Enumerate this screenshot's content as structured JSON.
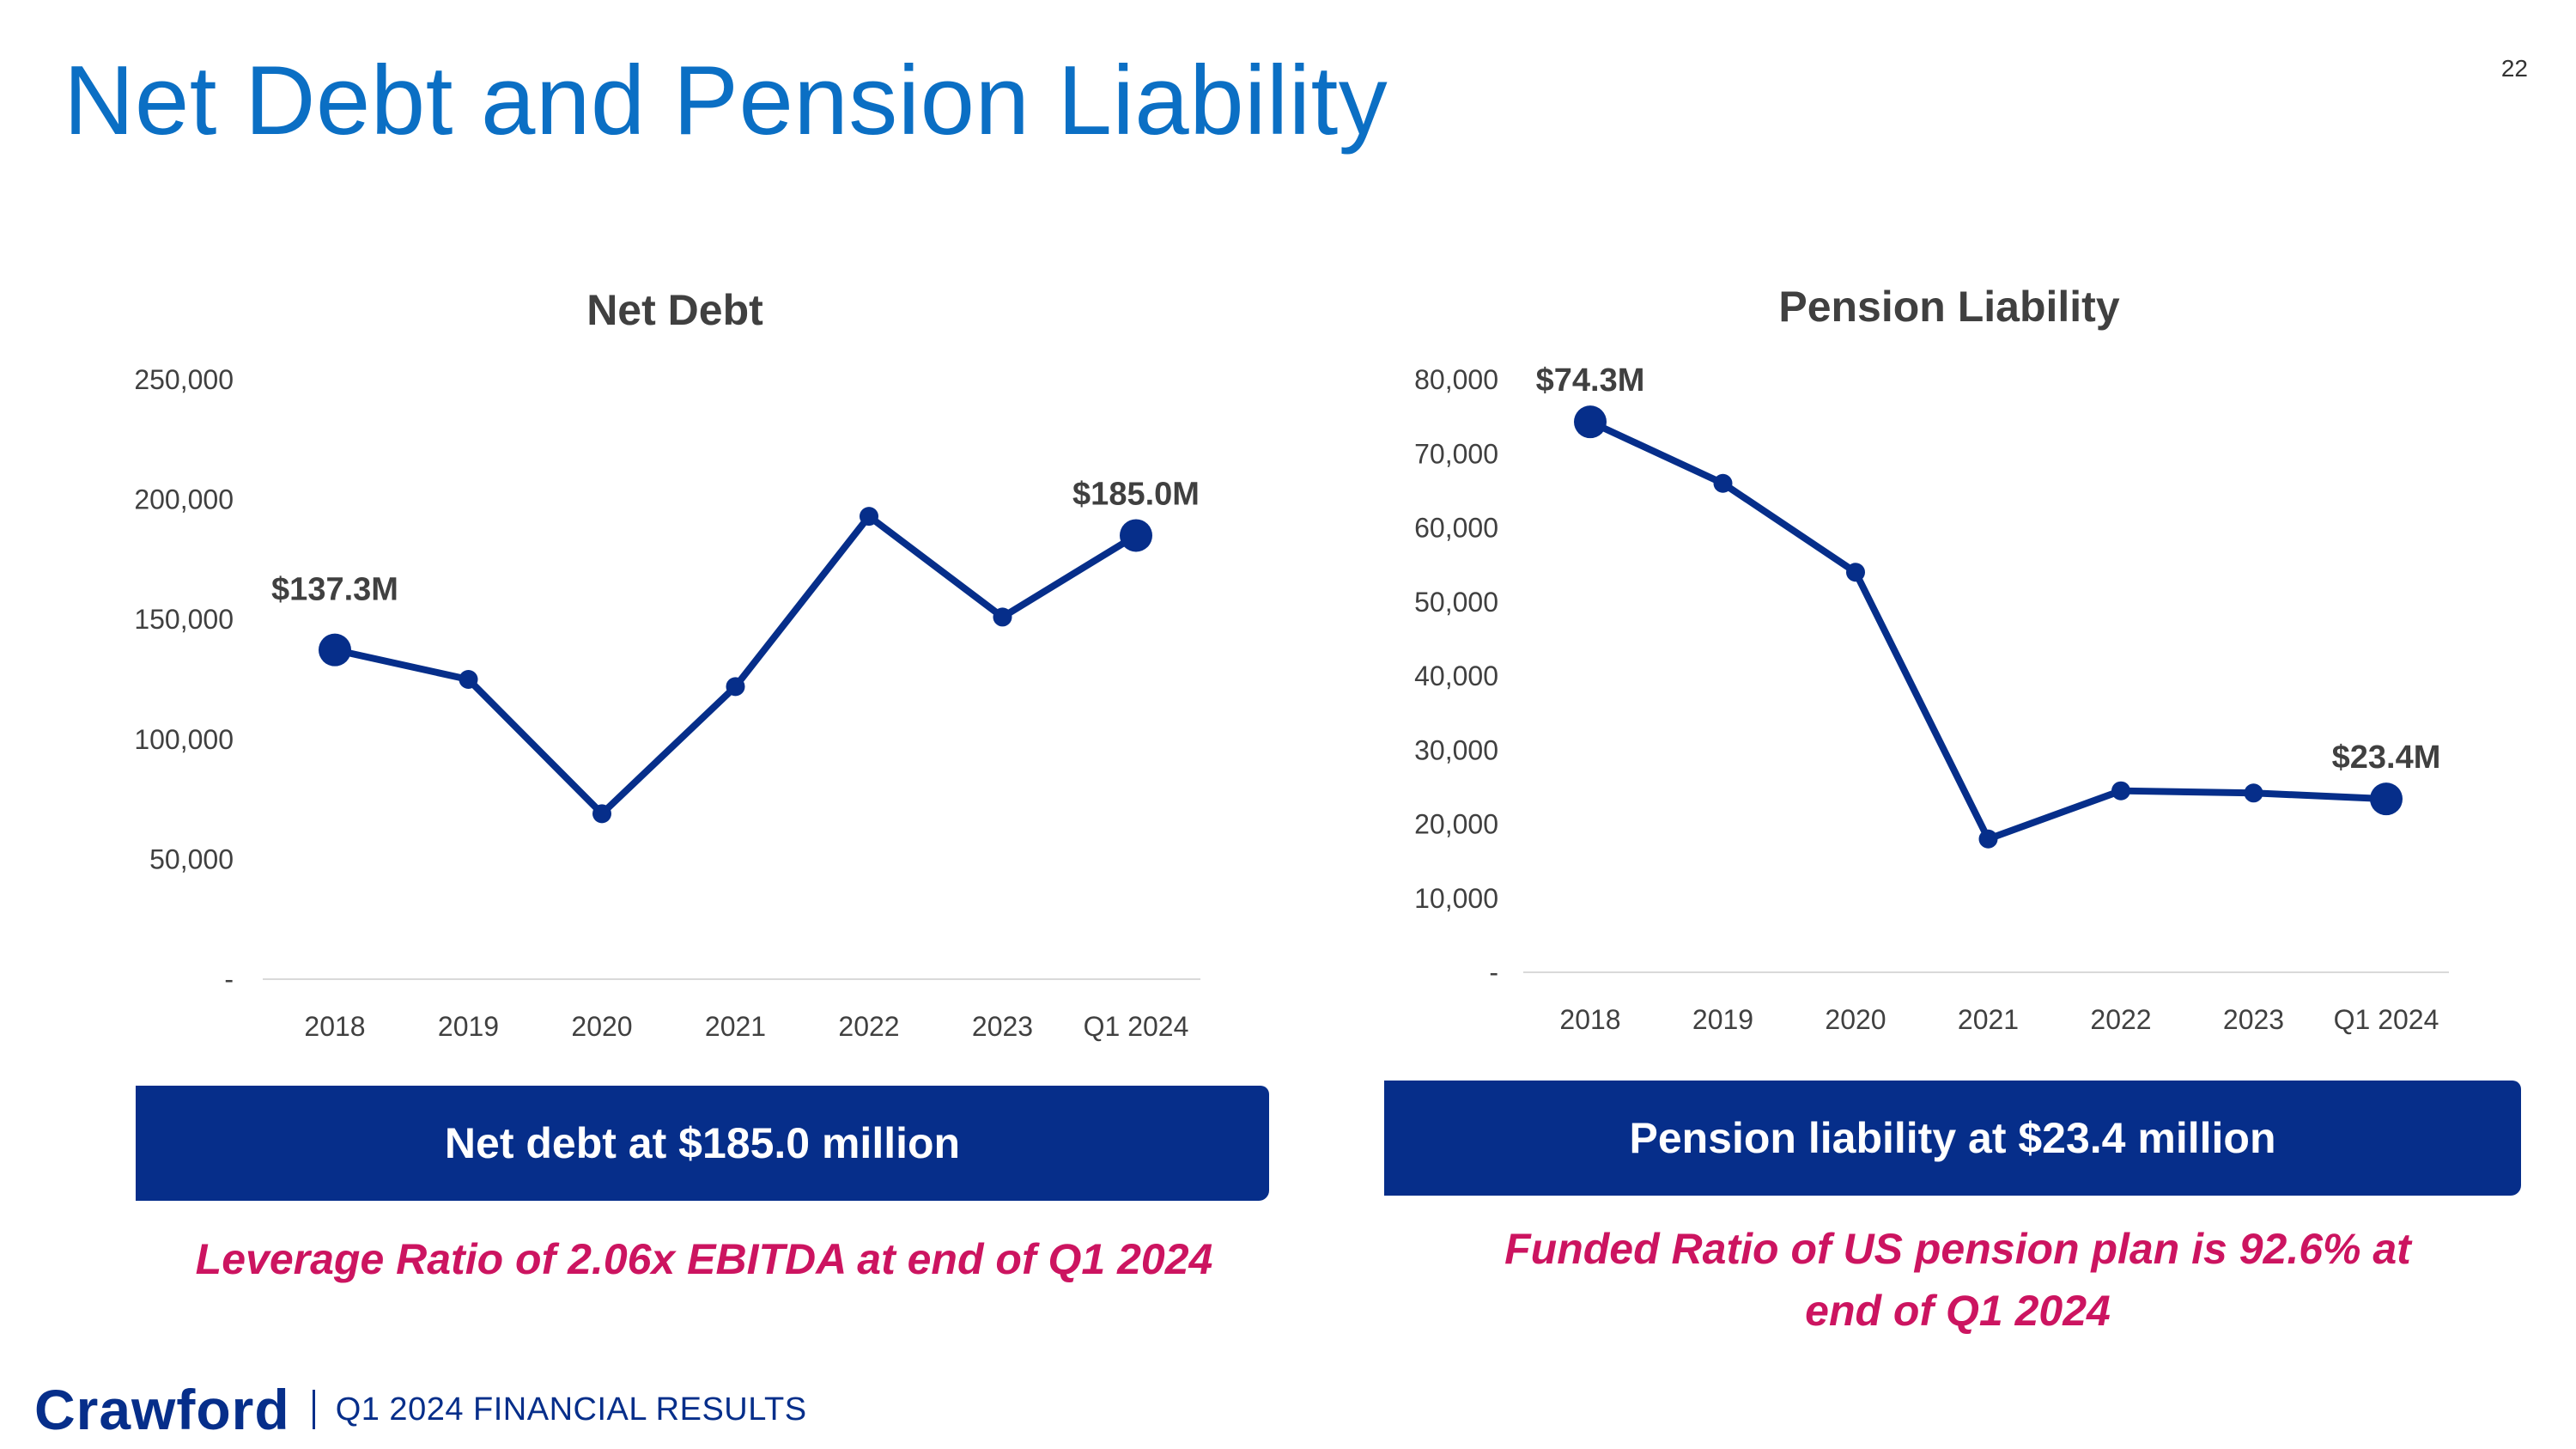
{
  "slide": {
    "title": "Net Debt and Pension Liability",
    "page_number": "22"
  },
  "colors": {
    "title": "#0B6FC4",
    "line": "#062E8A",
    "banner": "#062E8A",
    "note": "#CC1460"
  },
  "banners": {
    "left": "Net debt at $185.0 million",
    "right": "Pension liability at $23.4 million"
  },
  "notes": {
    "left": "Leverage Ratio of 2.06x EBITDA at end of Q1 2024",
    "right_line1": "Funded Ratio of US pension plan is 92.6% at",
    "right_line2": "end of Q1 2024"
  },
  "footer": {
    "logo": "Crawford",
    "text": "Q1 2024 FINANCIAL RESULTS"
  },
  "chart_data": [
    {
      "type": "line",
      "title": "Net Debt",
      "categories": [
        "2018",
        "2019",
        "2020",
        "2021",
        "2022",
        "2023",
        "Q1 2024"
      ],
      "series": [
        {
          "values": [
            137300,
            125000,
            69000,
            122000,
            193000,
            151000,
            185000
          ]
        }
      ],
      "ylim": [
        0,
        250000
      ],
      "yticks": [
        0,
        50000,
        100000,
        150000,
        200000,
        250000
      ],
      "ytick_labels": [
        "-",
        "50,000",
        "100,000",
        "150,000",
        "200,000",
        "250,000"
      ],
      "highlighted_points": [
        0,
        6
      ],
      "data_labels": [
        {
          "index": 0,
          "text": "$137.3M"
        },
        {
          "index": 6,
          "text": "$185.0M"
        }
      ],
      "grid": false,
      "legend": "none"
    },
    {
      "type": "line",
      "title": "Pension Liability",
      "categories": [
        "2018",
        "2019",
        "2020",
        "2021",
        "2022",
        "2023",
        "Q1 2024"
      ],
      "series": [
        {
          "values": [
            74300,
            66000,
            54000,
            18000,
            24500,
            24200,
            23400
          ]
        }
      ],
      "ylim": [
        0,
        80000
      ],
      "yticks": [
        0,
        10000,
        20000,
        30000,
        40000,
        50000,
        60000,
        70000,
        80000
      ],
      "ytick_labels": [
        "-",
        "10,000",
        "20,000",
        "30,000",
        "40,000",
        "50,000",
        "60,000",
        "70,000",
        "80,000"
      ],
      "highlighted_points": [
        0,
        6
      ],
      "data_labels": [
        {
          "index": 0,
          "text": "$74.3M"
        },
        {
          "index": 6,
          "text": "$23.4M"
        }
      ],
      "grid": false,
      "legend": "none"
    }
  ]
}
